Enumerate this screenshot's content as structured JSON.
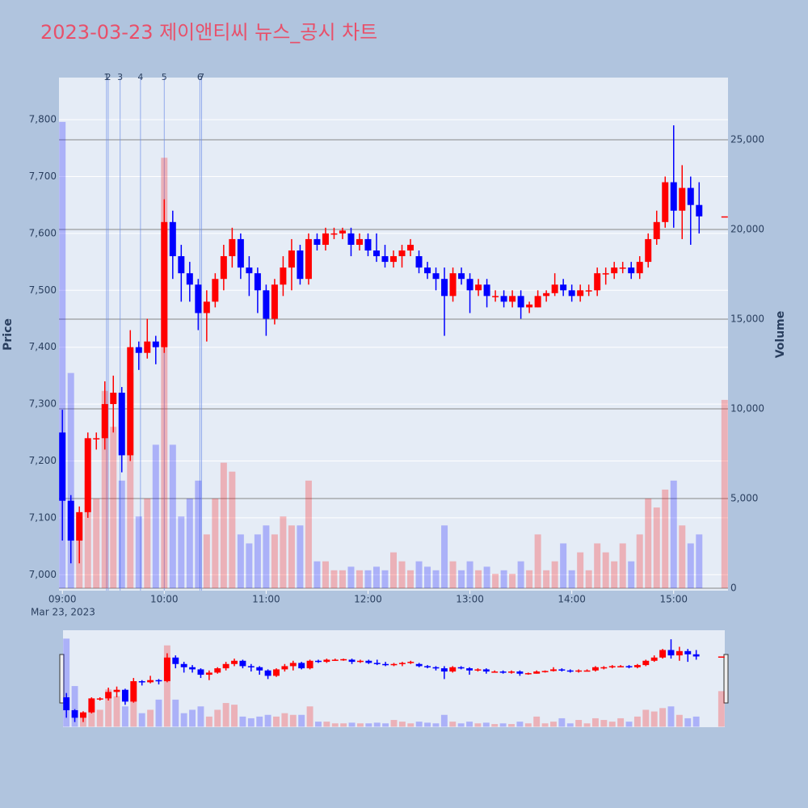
{
  "chart_data": {
    "type": "candlestick",
    "title": "2023-03-23 제이앤티씨 뉴스_공시 차트",
    "y_label": "Price",
    "y2_label": "Volume",
    "x_date_label": "Mar 23, 2023",
    "up_color": "#ff0000",
    "down_color": "#0000ff",
    "grid": true,
    "x": [
      "09:00",
      "09:05",
      "09:10",
      "09:15",
      "09:20",
      "09:25",
      "09:30",
      "09:35",
      "09:40",
      "09:45",
      "09:50",
      "09:55",
      "10:00",
      "10:05",
      "10:10",
      "10:15",
      "10:20",
      "10:25",
      "10:30",
      "10:35",
      "10:40",
      "10:45",
      "10:50",
      "10:55",
      "11:00",
      "11:05",
      "11:10",
      "11:15",
      "11:20",
      "11:25",
      "11:30",
      "11:35",
      "11:40",
      "11:45",
      "11:50",
      "11:55",
      "12:00",
      "12:05",
      "12:10",
      "12:15",
      "12:20",
      "12:25",
      "12:30",
      "12:35",
      "12:40",
      "12:45",
      "12:50",
      "12:55",
      "13:00",
      "13:05",
      "13:10",
      "13:15",
      "13:20",
      "13:25",
      "13:30",
      "13:35",
      "13:40",
      "13:45",
      "13:50",
      "13:55",
      "14:00",
      "14:05",
      "14:10",
      "14:15",
      "14:20",
      "14:25",
      "14:30",
      "14:35",
      "14:40",
      "14:45",
      "14:50",
      "14:55",
      "15:00",
      "15:05",
      "15:10",
      "15:15",
      "15:30"
    ],
    "open": [
      7250,
      7130,
      7060,
      7110,
      7240,
      7240,
      7300,
      7320,
      7210,
      7400,
      7390,
      7410,
      7400,
      7620,
      7560,
      7530,
      7510,
      7460,
      7480,
      7520,
      7560,
      7590,
      7540,
      7530,
      7500,
      7450,
      7510,
      7540,
      7570,
      7520,
      7590,
      7580,
      7600,
      7600,
      7600,
      7580,
      7590,
      7570,
      7560,
      7550,
      7560,
      7570,
      7560,
      7540,
      7530,
      7520,
      7490,
      7530,
      7520,
      7500,
      7510,
      7490,
      7490,
      7480,
      7490,
      7470,
      7470,
      7490,
      7495,
      7510,
      7500,
      7490,
      7500,
      7500,
      7530,
      7530,
      7540,
      7540,
      7530,
      7550,
      7590,
      7620,
      7690,
      7640,
      7680,
      7650,
      7630
    ],
    "high": [
      7290,
      7140,
      7120,
      7250,
      7250,
      7340,
      7350,
      7330,
      7430,
      7410,
      7450,
      7420,
      7660,
      7640,
      7580,
      7550,
      7520,
      7500,
      7530,
      7580,
      7610,
      7600,
      7560,
      7540,
      7510,
      7520,
      7560,
      7590,
      7580,
      7600,
      7600,
      7610,
      7610,
      7610,
      7610,
      7600,
      7600,
      7600,
      7580,
      7570,
      7580,
      7590,
      7570,
      7550,
      7540,
      7540,
      7540,
      7540,
      7530,
      7520,
      7520,
      7500,
      7500,
      7500,
      7500,
      7480,
      7500,
      7500,
      7530,
      7520,
      7510,
      7510,
      7510,
      7540,
      7540,
      7550,
      7550,
      7550,
      7560,
      7600,
      7640,
      7700,
      7790,
      7720,
      7700,
      7690,
      7630
    ],
    "low": [
      7060,
      7020,
      7020,
      7100,
      7220,
      7220,
      7250,
      7180,
      7200,
      7360,
      7380,
      7370,
      7390,
      7520,
      7480,
      7480,
      7430,
      7410,
      7470,
      7500,
      7540,
      7520,
      7490,
      7460,
      7420,
      7440,
      7490,
      7500,
      7510,
      7510,
      7570,
      7570,
      7590,
      7590,
      7560,
      7570,
      7560,
      7550,
      7540,
      7540,
      7540,
      7560,
      7530,
      7520,
      7500,
      7420,
      7480,
      7510,
      7460,
      7490,
      7470,
      7480,
      7470,
      7470,
      7450,
      7460,
      7470,
      7480,
      7490,
      7490,
      7480,
      7480,
      7490,
      7490,
      7510,
      7520,
      7530,
      7520,
      7520,
      7540,
      7580,
      7610,
      7610,
      7590,
      7580,
      7600,
      7630
    ],
    "close": [
      7130,
      7060,
      7110,
      7240,
      7240,
      7300,
      7320,
      7210,
      7400,
      7390,
      7410,
      7400,
      7620,
      7560,
      7530,
      7510,
      7460,
      7480,
      7520,
      7560,
      7590,
      7540,
      7530,
      7500,
      7450,
      7510,
      7540,
      7570,
      7520,
      7590,
      7580,
      7600,
      7600,
      7605,
      7580,
      7590,
      7570,
      7560,
      7550,
      7560,
      7570,
      7580,
      7540,
      7530,
      7520,
      7490,
      7530,
      7520,
      7500,
      7510,
      7490,
      7490,
      7480,
      7490,
      7470,
      7475,
      7490,
      7495,
      7510,
      7500,
      7490,
      7500,
      7500,
      7530,
      7530,
      7540,
      7540,
      7530,
      7550,
      7590,
      7620,
      7690,
      7640,
      7680,
      7650,
      7630,
      7630
    ],
    "volume": [
      26000,
      12000,
      4000,
      6000,
      5000,
      11000,
      9000,
      6000,
      12000,
      4000,
      5000,
      8000,
      24000,
      8000,
      4000,
      5000,
      6000,
      3000,
      5000,
      7000,
      6500,
      3000,
      2500,
      3000,
      3500,
      3000,
      4000,
      3500,
      3500,
      6000,
      1500,
      1500,
      1000,
      1000,
      1200,
      1000,
      1000,
      1200,
      1000,
      2000,
      1500,
      1000,
      1500,
      1200,
      1000,
      3500,
      1500,
      1000,
      1500,
      1000,
      1200,
      800,
      1000,
      800,
      1500,
      1000,
      3000,
      1000,
      1500,
      2500,
      1000,
      2000,
      1000,
      2500,
      2000,
      1500,
      2500,
      1500,
      3000,
      5000,
      4500,
      5500,
      6000,
      3500,
      2500,
      3000,
      10500
    ],
    "xlim": [
      "08:58",
      "15:32"
    ],
    "xticks": [
      "09:00",
      "10:00",
      "11:00",
      "12:00",
      "13:00",
      "14:00",
      "15:00"
    ],
    "ylim": [
      6972,
      7874
    ],
    "yticks": [
      {
        "value": 7000,
        "label": "7,000"
      },
      {
        "value": 7100,
        "label": "7,100"
      },
      {
        "value": 7200,
        "label": "7,200"
      },
      {
        "value": 7300,
        "label": "7,300"
      },
      {
        "value": 7400,
        "label": "7,400"
      },
      {
        "value": 7500,
        "label": "7,500"
      },
      {
        "value": 7600,
        "label": "7,600"
      },
      {
        "value": 7700,
        "label": "7,700"
      },
      {
        "value": 7800,
        "label": "7,800"
      }
    ],
    "y2lim": [
      -135,
      28470
    ],
    "y2ticks": [
      0,
      {
        "value": 5000,
        "label": "5,000"
      },
      {
        "value": 10000,
        "label": "10,000"
      },
      {
        "value": 15000,
        "label": "15,000"
      },
      {
        "value": 20000,
        "label": "20,000"
      },
      {
        "value": 25000,
        "label": "25,000"
      }
    ],
    "annotations": [
      {
        "label": "1",
        "x": "09:26"
      },
      {
        "label": "2",
        "x": "09:27"
      },
      {
        "label": "3",
        "x": "09:34"
      },
      {
        "label": "4",
        "x": "09:46"
      },
      {
        "label": "5",
        "x": "10:00"
      },
      {
        "label": "6",
        "x": "10:21"
      },
      {
        "label": "7",
        "x": "10:22"
      }
    ]
  }
}
